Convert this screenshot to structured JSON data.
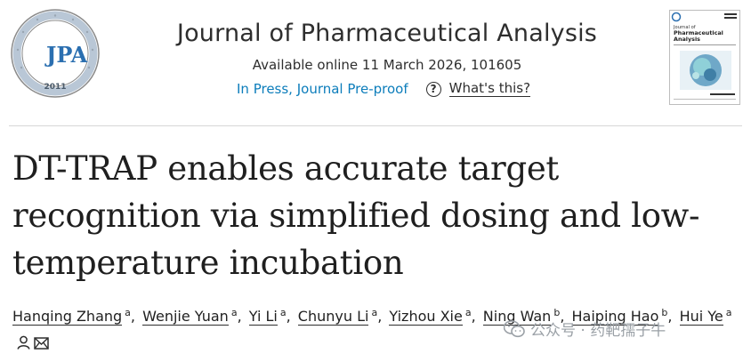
{
  "journal": {
    "title": "Journal of Pharmaceutical Analysis",
    "available": "Available online 11 March 2026, 101605",
    "status": "In Press, Journal Pre-proof",
    "whats_this": "What's this?",
    "logo": {
      "text": "JPA",
      "ring_text": "Journal of Pharmaceutical Analysis",
      "year": "2011"
    },
    "cover": {
      "title_line1": "Journal of",
      "title_line2": "Pharmaceutical",
      "title_line3": "Analysis"
    }
  },
  "article": {
    "title": "DT-TRAP enables accurate target recognition via simplified dosing and low-temperature incubation"
  },
  "authors": [
    {
      "name": "Hanqing Zhang",
      "aff": "a",
      "sep": ","
    },
    {
      "name": "Wenjie Yuan",
      "aff": "a",
      "sep": ","
    },
    {
      "name": "Yi Li",
      "aff": "a",
      "sep": ","
    },
    {
      "name": "Chunyu Li",
      "aff": "a",
      "sep": ","
    },
    {
      "name": "Yizhou Xie",
      "aff": "a",
      "sep": ","
    },
    {
      "name": "Ning Wan",
      "aff": "b",
      "sep": ","
    },
    {
      "name": "Haiping Hao",
      "aff": "b",
      "sep": ","
    },
    {
      "name": "Hui Ye",
      "aff": "a",
      "sep": ""
    }
  ],
  "watermark": {
    "text": "公众号 · 药靶孺子牛"
  },
  "colors": {
    "link": "#0c7dbb",
    "logo_blue": "#2b6fb0",
    "text": "#1f1f1f"
  }
}
